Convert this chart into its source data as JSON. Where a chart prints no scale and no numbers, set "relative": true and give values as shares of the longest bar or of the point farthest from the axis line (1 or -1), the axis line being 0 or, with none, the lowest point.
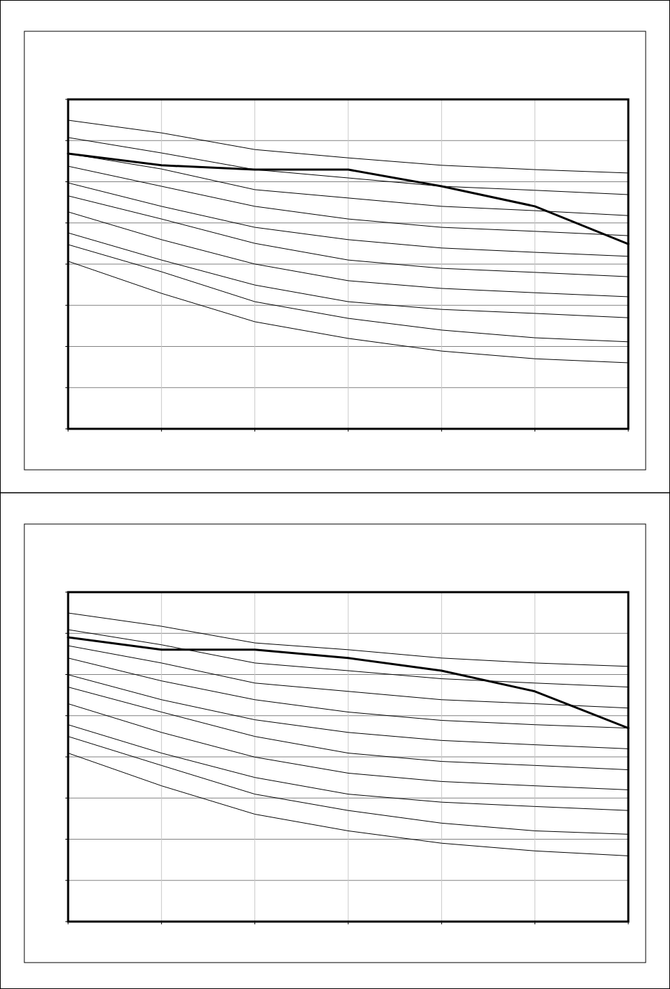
{
  "chart_data": [
    {
      "type": "line",
      "relative": true,
      "grid": true,
      "categories": [
        null,
        null,
        null,
        null,
        null,
        null,
        null
      ],
      "series": [
        {
          "color": "#000000",
          "values": [
            1.0,
            0.959,
            0.905,
            0.878,
            0.854,
            0.84,
            0.829
          ]
        },
        {
          "color": "#000000",
          "values": [
            0.944,
            0.894,
            0.84,
            0.813,
            0.786,
            0.773,
            0.759
          ]
        },
        {
          "color": "#000000",
          "values": [
            0.892,
            0.842,
            0.775,
            0.748,
            0.721,
            0.707,
            0.691
          ]
        },
        {
          "color": "#000000",
          "values": [
            0.851,
            0.786,
            0.721,
            0.68,
            0.653,
            0.64,
            0.626
          ]
        },
        {
          "color": "#000000",
          "values": [
            0.797,
            0.721,
            0.653,
            0.613,
            0.586,
            0.572,
            0.559
          ]
        },
        {
          "color": "#000000",
          "values": [
            0.755,
            0.68,
            0.601,
            0.547,
            0.52,
            0.507,
            0.493
          ]
        },
        {
          "color": "#000000",
          "values": [
            0.703,
            0.613,
            0.534,
            0.48,
            0.455,
            0.441,
            0.428
          ]
        },
        {
          "color": "#000000",
          "values": [
            0.635,
            0.547,
            0.466,
            0.412,
            0.387,
            0.374,
            0.36
          ]
        },
        {
          "color": "#000000",
          "values": [
            0.597,
            0.509,
            0.412,
            0.358,
            0.32,
            0.295,
            0.282
          ]
        },
        {
          "color": "#000000",
          "values": [
            0.543,
            0.439,
            0.347,
            0.293,
            0.252,
            0.227,
            0.214
          ]
        },
        {
          "color": "#000000",
          "values": [
            0.892,
            0.854,
            0.84,
            0.84,
            0.786,
            0.721,
            0.599
          ]
        }
      ]
    },
    {
      "type": "line",
      "relative": true,
      "grid": true,
      "categories": [
        null,
        null,
        null,
        null,
        null,
        null,
        null
      ],
      "series": [
        {
          "color": "#000000",
          "values": [
            1.0,
            0.957,
            0.903,
            0.881,
            0.854,
            0.838,
            0.827
          ]
        },
        {
          "color": "#000000",
          "values": [
            0.946,
            0.897,
            0.838,
            0.813,
            0.787,
            0.773,
            0.76
          ]
        },
        {
          "color": "#000000",
          "values": [
            0.894,
            0.838,
            0.773,
            0.746,
            0.719,
            0.706,
            0.692
          ]
        },
        {
          "color": "#000000",
          "values": [
            0.854,
            0.78,
            0.719,
            0.679,
            0.652,
            0.638,
            0.627
          ]
        },
        {
          "color": "#000000",
          "values": [
            0.8,
            0.719,
            0.654,
            0.613,
            0.587,
            0.573,
            0.56
          ]
        },
        {
          "color": "#000000",
          "values": [
            0.76,
            0.679,
            0.6,
            0.546,
            0.519,
            0.506,
            0.492
          ]
        },
        {
          "color": "#000000",
          "values": [
            0.706,
            0.613,
            0.533,
            0.481,
            0.454,
            0.44,
            0.427
          ]
        },
        {
          "color": "#000000",
          "values": [
            0.638,
            0.546,
            0.467,
            0.413,
            0.387,
            0.373,
            0.36
          ]
        },
        {
          "color": "#000000",
          "values": [
            0.6,
            0.506,
            0.413,
            0.36,
            0.319,
            0.294,
            0.283
          ]
        },
        {
          "color": "#000000",
          "values": [
            0.546,
            0.44,
            0.348,
            0.294,
            0.254,
            0.229,
            0.213
          ]
        },
        {
          "color": "#000000",
          "values": [
            0.921,
            0.881,
            0.881,
            0.854,
            0.813,
            0.746,
            0.627
          ]
        }
      ]
    }
  ]
}
